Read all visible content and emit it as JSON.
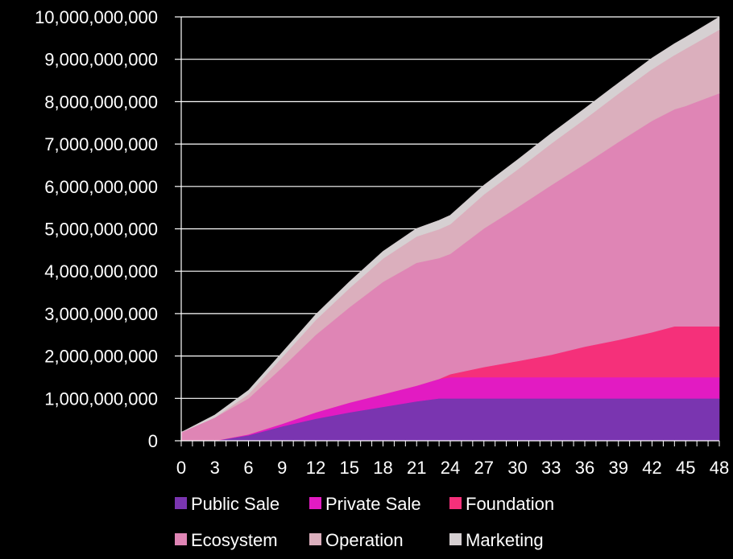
{
  "chart_data": {
    "type": "area",
    "stacked": true,
    "x": [
      0,
      3,
      6,
      9,
      12,
      15,
      18,
      21,
      23,
      24,
      27,
      30,
      33,
      36,
      39,
      42,
      44,
      45,
      48
    ],
    "xticks": [
      0,
      3,
      6,
      9,
      12,
      15,
      18,
      21,
      24,
      27,
      30,
      33,
      36,
      39,
      42,
      45,
      48
    ],
    "xlim": [
      0,
      48
    ],
    "ylim": [
      0,
      10000000000
    ],
    "yticks": [
      0,
      1000000000,
      2000000000,
      3000000000,
      4000000000,
      5000000000,
      6000000000,
      7000000000,
      8000000000,
      9000000000,
      10000000000
    ],
    "ytick_labels": [
      "0",
      "1,000,000,000",
      "2,000,000,000",
      "3,000,000,000",
      "4,000,000,000",
      "5,000,000,000",
      "6,000,000,000",
      "7,000,000,000",
      "8,000,000,000",
      "9,000,000,000",
      "10,000,000,000"
    ],
    "grid": "horizontal",
    "legend_position": "bottom",
    "series": [
      {
        "name": "Public Sale",
        "color": "#7a35b0",
        "values": [
          0,
          0,
          130000000,
          340000000,
          520000000,
          670000000,
          800000000,
          930000000,
          1000000000,
          1000000000,
          1000000000,
          1000000000,
          1000000000,
          1000000000,
          1000000000,
          1000000000,
          1000000000,
          1000000000,
          1000000000
        ]
      },
      {
        "name": "Private Sale",
        "color": "#e21bc2",
        "values": [
          0,
          0,
          20000000,
          60000000,
          150000000,
          230000000,
          300000000,
          370000000,
          460000000,
          500000000,
          500000000,
          500000000,
          500000000,
          500000000,
          500000000,
          500000000,
          500000000,
          500000000,
          500000000
        ]
      },
      {
        "name": "Foundation",
        "color": "#f5307a",
        "values": [
          0,
          0,
          0,
          0,
          0,
          0,
          0,
          0,
          0,
          70000000,
          240000000,
          380000000,
          530000000,
          720000000,
          880000000,
          1060000000,
          1200000000,
          1200000000,
          1200000000
        ]
      },
      {
        "name": "Ecosystem",
        "color": "#df85b5",
        "values": [
          200000000,
          550000000,
          850000000,
          1330000000,
          1830000000,
          2250000000,
          2650000000,
          2900000000,
          2850000000,
          2840000000,
          3270000000,
          3630000000,
          4000000000,
          4310000000,
          4670000000,
          4990000000,
          5120000000,
          5200000000,
          5500000000
        ]
      },
      {
        "name": "Operation",
        "color": "#dbafbd",
        "values": [
          0,
          0,
          100000000,
          240000000,
          350000000,
          450000000,
          550000000,
          620000000,
          680000000,
          700000000,
          800000000,
          890000000,
          980000000,
          1060000000,
          1140000000,
          1220000000,
          1280000000,
          1350000000,
          1500000000
        ]
      },
      {
        "name": "Marketing",
        "color": "#d6d0d2",
        "values": [
          0,
          60000000,
          90000000,
          110000000,
          130000000,
          150000000,
          170000000,
          190000000,
          210000000,
          210000000,
          220000000,
          230000000,
          240000000,
          250000000,
          250000000,
          260000000,
          270000000,
          270000000,
          300000000
        ]
      }
    ]
  }
}
